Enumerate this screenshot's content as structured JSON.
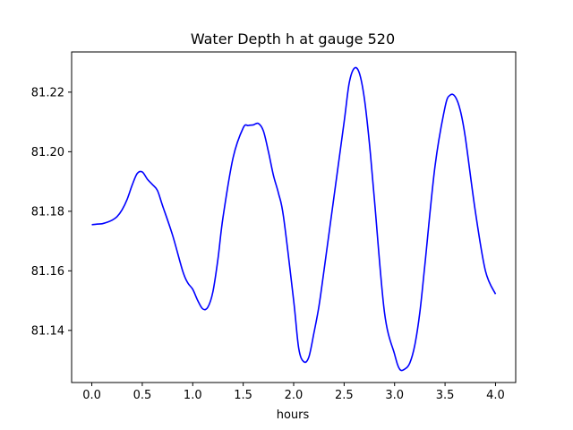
{
  "chart_data": {
    "type": "line",
    "title": "Water Depth h at gauge 520",
    "xlabel": "hours",
    "ylabel": "",
    "xlim": [
      -0.2,
      4.2
    ],
    "ylim": [
      81.1225,
      81.2335
    ],
    "xticks": [
      0.0,
      0.5,
      1.0,
      1.5,
      2.0,
      2.5,
      3.0,
      3.5,
      4.0
    ],
    "xtick_labels": [
      "0.0",
      "0.5",
      "1.0",
      "1.5",
      "2.0",
      "2.5",
      "3.0",
      "3.5",
      "4.0"
    ],
    "yticks": [
      81.14,
      81.16,
      81.18,
      81.2,
      81.22
    ],
    "ytick_labels": [
      "81.14",
      "81.16",
      "81.18",
      "81.20",
      "81.22"
    ],
    "grid": false,
    "series": [
      {
        "color": "#0000ff",
        "x": [
          0.0,
          0.05,
          0.1,
          0.15,
          0.2,
          0.25,
          0.3,
          0.35,
          0.4,
          0.45,
          0.5,
          0.55,
          0.6,
          0.65,
          0.7,
          0.8,
          0.9,
          0.95,
          1.0,
          1.05,
          1.1,
          1.15,
          1.2,
          1.25,
          1.3,
          1.4,
          1.5,
          1.55,
          1.6,
          1.65,
          1.7,
          1.75,
          1.8,
          1.85,
          1.9,
          2.0,
          2.05,
          2.1,
          2.15,
          2.2,
          2.25,
          2.3,
          2.4,
          2.5,
          2.55,
          2.6,
          2.65,
          2.7,
          2.75,
          2.8,
          2.9,
          3.0,
          3.05,
          3.1,
          3.15,
          3.2,
          3.25,
          3.3,
          3.4,
          3.5,
          3.55,
          3.6,
          3.65,
          3.7,
          3.8,
          3.9,
          4.0
        ],
        "y": [
          81.1755,
          81.1757,
          81.1758,
          81.1763,
          81.177,
          81.1782,
          81.1805,
          81.184,
          81.1888,
          81.1927,
          81.1932,
          81.1908,
          81.189,
          81.187,
          81.182,
          81.172,
          81.16,
          81.156,
          81.1538,
          81.15,
          81.1472,
          81.1478,
          81.153,
          81.164,
          81.178,
          81.198,
          81.208,
          81.2088,
          81.209,
          81.2095,
          81.207,
          81.2,
          81.192,
          81.186,
          81.178,
          81.15,
          81.134,
          81.1295,
          81.131,
          81.139,
          81.148,
          81.16,
          81.185,
          81.21,
          81.223,
          81.228,
          81.2265,
          81.218,
          81.203,
          81.184,
          81.146,
          81.132,
          81.127,
          81.127,
          81.129,
          81.135,
          81.146,
          81.162,
          81.195,
          81.215,
          81.219,
          81.2185,
          81.214,
          81.205,
          81.18,
          81.16,
          81.1522
        ]
      }
    ]
  }
}
